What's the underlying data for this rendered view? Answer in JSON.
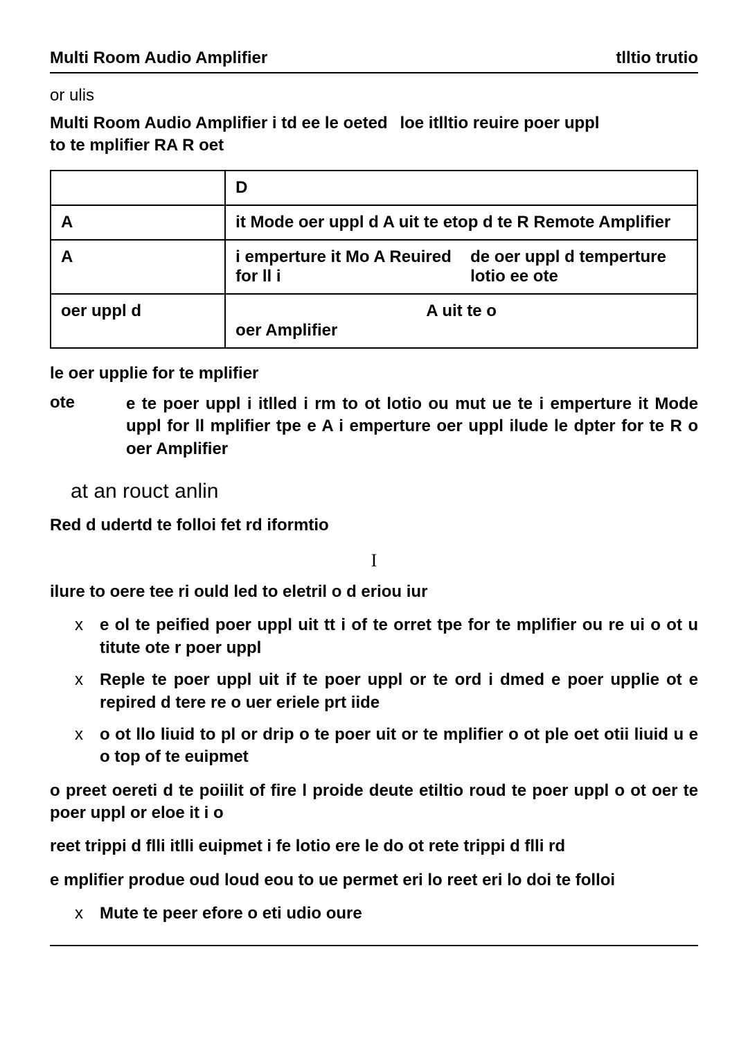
{
  "header": {
    "left": "Multi Room Audio Amplifier",
    "right": "tlltio trutio"
  },
  "intro": {
    "line1": "or ulis",
    "line2_left": " Multi Room Audio Amplifier i  td ee le  oeted to te mplifier RA R oet",
    "line2_right": "loe itlltio reuire  poer uppl"
  },
  "table": {
    "header_col2": "D",
    "rows": [
      {
        "c1": "A",
        "c2": "it Mode oer uppl  d   A uit te etop d te R Remote Amplifier"
      },
      {
        "c1": "A",
        "c2_left": "i emperture it Mo A Reuired for ll i",
        "c2_right": "de oer uppl  d temperture lotio ee ote"
      },
      {
        "c1": "oer uppl  d",
        "c2_left": "oer Amplifier",
        "c2_right": "A uit te  o"
      }
    ]
  },
  "caption": "le   oer upplie for te mplifier",
  "note": {
    "label": "ote",
    "body": "e te poer uppl i itlled i                        rm to ot lotio ou mut ue te i emperture  it  Mode  uppl  for              ll  mplifier  tpe  e  A  i emperture oer uppl ilude  le dpter for te R o oer Amplifier"
  },
  "section_title": "at an rouct anlin",
  "subhead": "Red d udertd te folloi fet rd iformtio",
  "warn_center": "I",
  "warn_lead": "ilure to oere tee ri ould led to eletril o d eriou iur",
  "bullets1": [
    "e  ol  te  peified  poer  uppl  uit  tt  i  of  te  orret  tpe  for  te mplifier ou re ui o ot u             titute  ote         r poer uppl",
    "Reple te poer uppl uit if te poer uppl or te ord i dmed e poer  upplie  ot  e  repired  d  tere  re  o  uer  eriele  prt iide",
    "o ot llo liuid to pl or drip o te poer uit or te mplifier o ot ple oet otii liuid u   e o top of te euipmet"
  ],
  "paras": [
    "o  preet  oereti  d  te  poiilit  of    fire  l  proide  deute etiltio roud te poer uppl o ot oer te poer uppl or eloe it i  o",
    "reet trippi d flli  itlli euipmet i fe lotio ere le do ot rete  trippi d flli rd",
    "e mplifier  produe oud loud eou to ue permet eri lo  reet eri lo  doi te folloi"
  ],
  "bullets2": [
    "Mute te peer efore o          eti  udio oure"
  ]
}
